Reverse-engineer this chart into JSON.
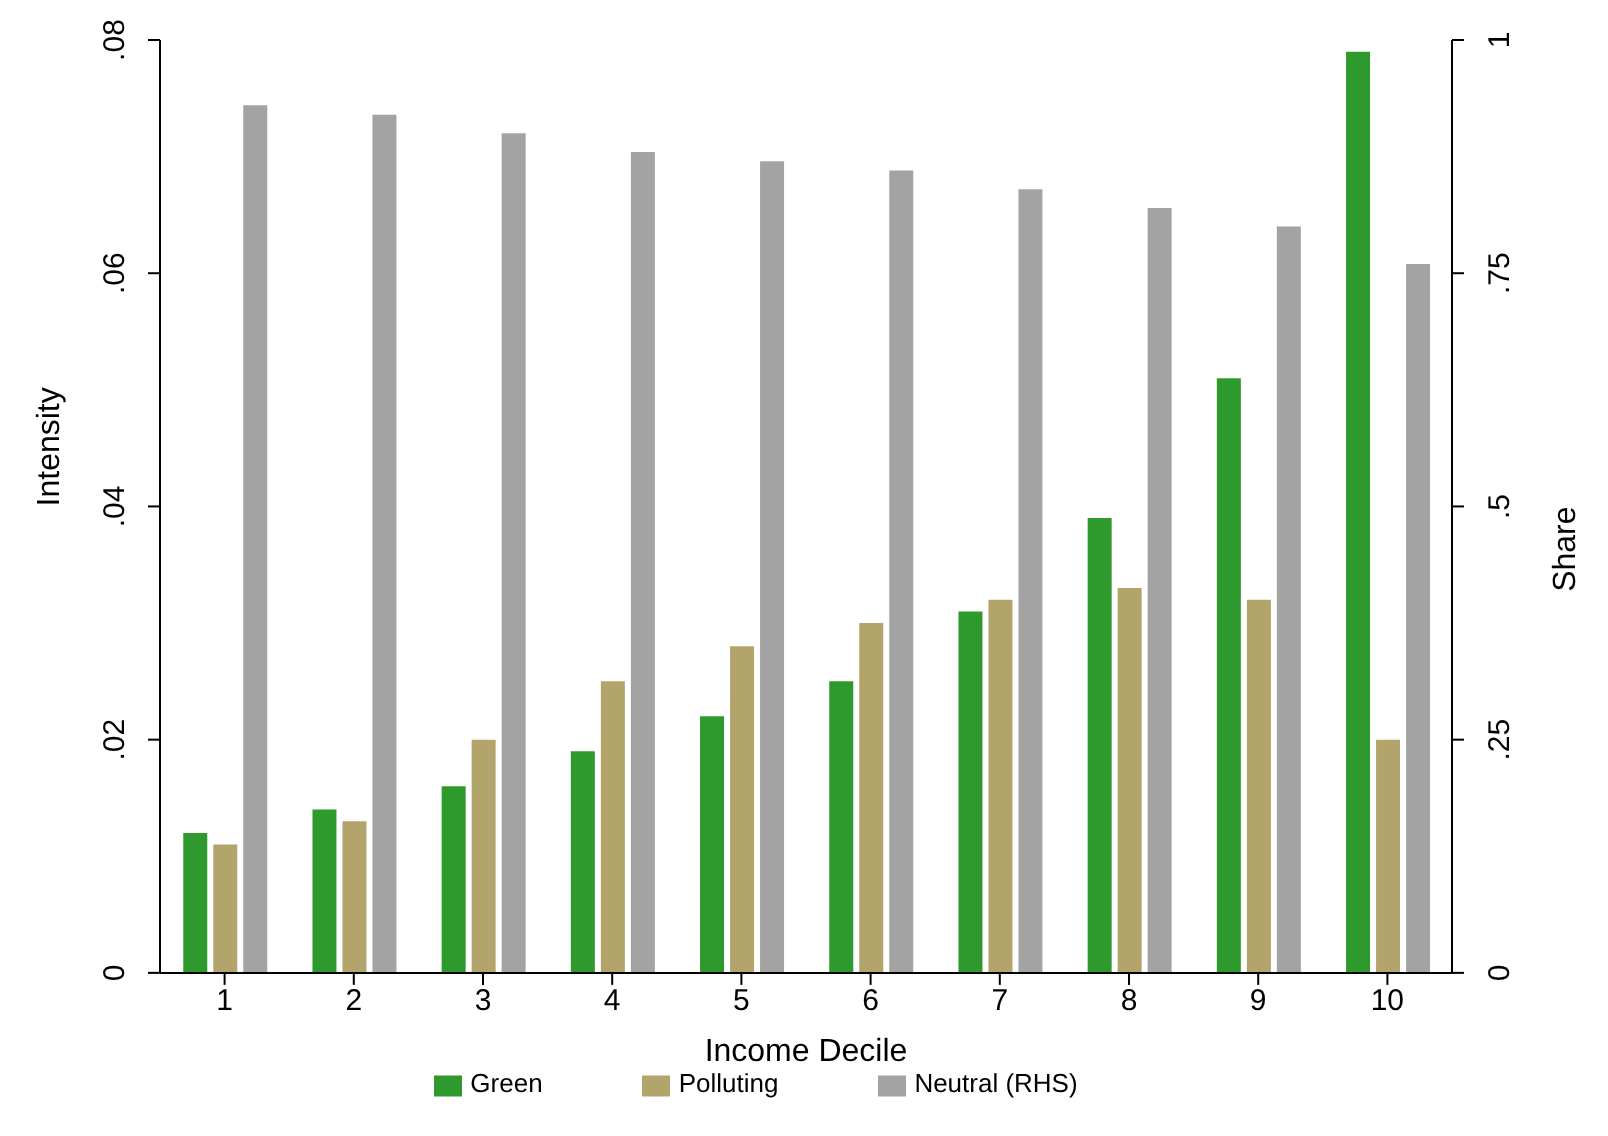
{
  "chart_data": {
    "type": "bar",
    "xlabel": "Income Decile",
    "ylabel": "Intensity",
    "y2label": "Share",
    "categories": [
      "1",
      "2",
      "3",
      "4",
      "5",
      "6",
      "7",
      "8",
      "9",
      "10"
    ],
    "series": [
      {
        "name": "Green",
        "color": "#2e9a2e",
        "values": [
          0.012,
          0.014,
          0.016,
          0.019,
          0.022,
          0.025,
          0.031,
          0.039,
          0.051,
          0.079
        ]
      },
      {
        "name": "Polluting",
        "color": "#b3a46c",
        "values": [
          0.011,
          0.013,
          0.02,
          0.025,
          0.028,
          0.03,
          0.032,
          0.033,
          0.032,
          0.02
        ]
      },
      {
        "name": "Neutral (RHS)",
        "color": "#a3a3a3",
        "axis": "y2",
        "values": [
          0.93,
          0.92,
          0.9,
          0.88,
          0.87,
          0.86,
          0.84,
          0.82,
          0.8,
          0.76
        ]
      }
    ],
    "ylim": [
      0,
      0.08
    ],
    "yticks": [
      0,
      {
        "value": 0.02,
        "label": ".02"
      },
      {
        "value": 0.04,
        "label": ".04"
      },
      {
        "value": 0.06,
        "label": ".06"
      },
      {
        "value": 0.08,
        "label": ".08"
      }
    ],
    "y2lim": [
      0,
      1
    ],
    "y2ticks": [
      0,
      {
        "value": 0.25,
        "label": ".25"
      },
      {
        "value": 0.5,
        "label": ".5"
      },
      {
        "value": 0.75,
        "label": ".75"
      },
      1
    ],
    "grid": false,
    "legend": "bottom"
  }
}
